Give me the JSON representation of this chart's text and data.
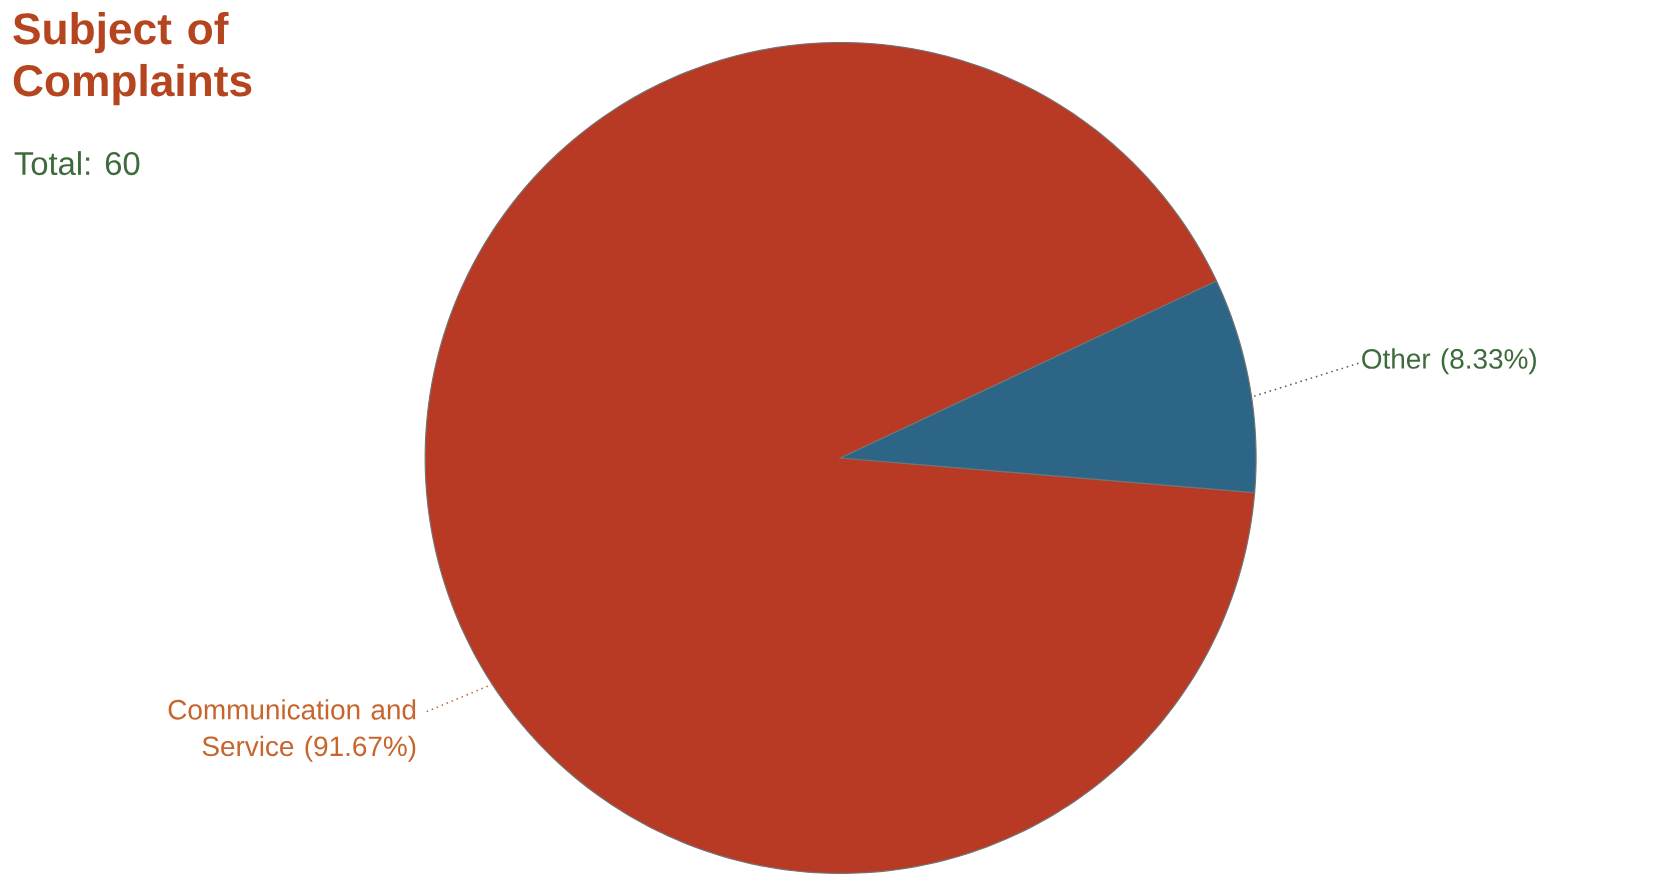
{
  "chart_data": {
    "type": "pie",
    "title": "Subject of Complaints",
    "subtitle": "Total: 60",
    "categories": [
      "Communication and Service",
      "Other"
    ],
    "values": [
      91.67,
      8.33
    ],
    "value_labels": [
      "(91.67%)",
      "(8.33%)"
    ],
    "colors": [
      "#b83a24",
      "#2c6585"
    ]
  }
}
